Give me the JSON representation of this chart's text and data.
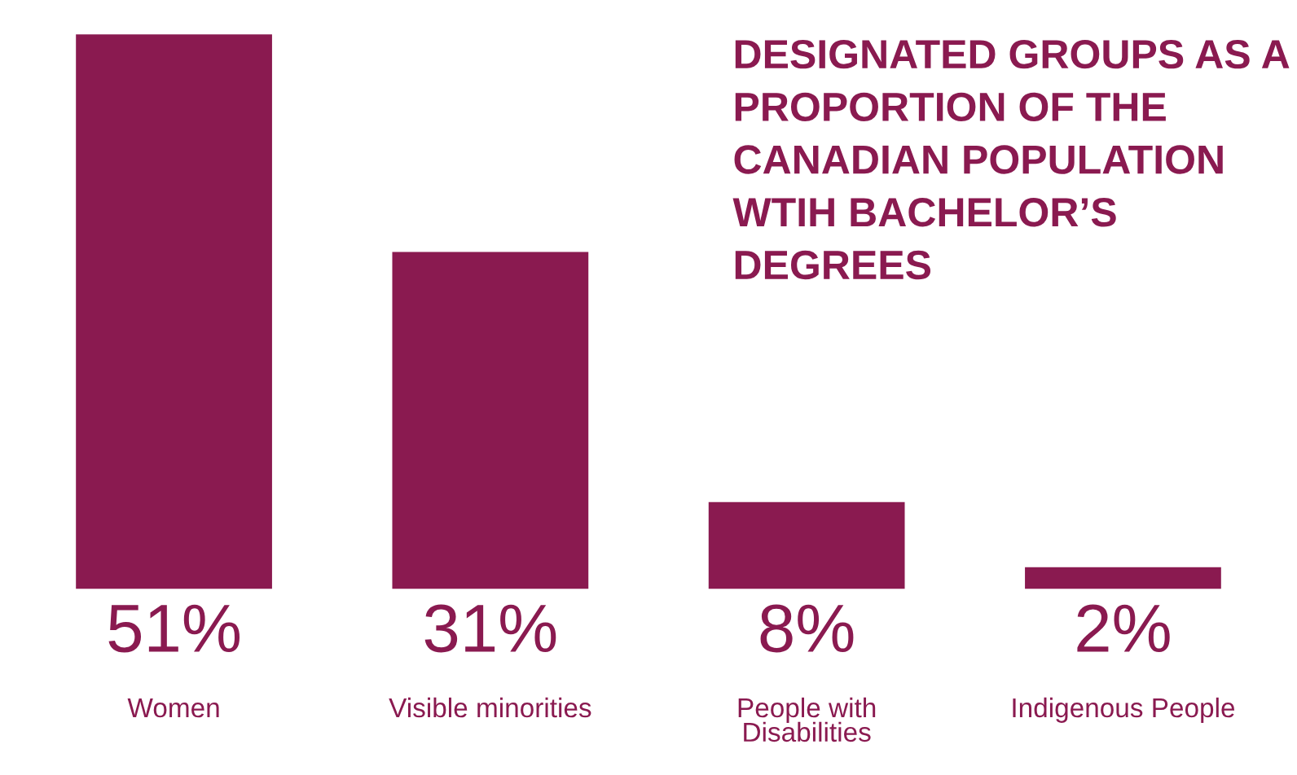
{
  "chart_data": {
    "type": "bar",
    "title": "DESIGNATED GROUPS AS A PROPORTION OF THE CANADIAN POPULATION WTIH BACHELOR’S DEGREES",
    "categories": [
      "Women",
      "Visible minorities",
      "People with Disabilities",
      "Indigenous People"
    ],
    "values": [
      51,
      31,
      8,
      2
    ],
    "value_labels": [
      "51%",
      "31%",
      "8%",
      "2%"
    ],
    "color": "#8a1a50"
  }
}
